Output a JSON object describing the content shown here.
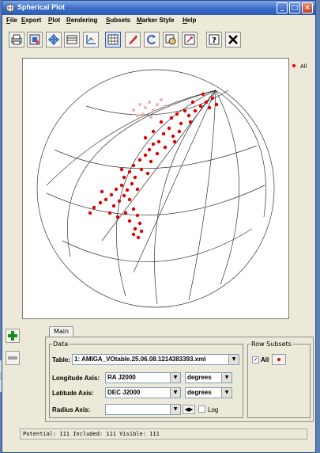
{
  "window": {
    "title": "Spherical Plot"
  },
  "menu": [
    {
      "label": "File",
      "u": "F",
      "rest": "ile"
    },
    {
      "label": "Export",
      "u": "E",
      "rest": "xport"
    },
    {
      "label": "Plot",
      "u": "P",
      "rest": "lot"
    },
    {
      "label": "Rendering",
      "u": "R",
      "rest": "endering"
    },
    {
      "label": "Subsets",
      "u": "S",
      "rest": "ubsets"
    },
    {
      "label": "Marker Style",
      "u": "M",
      "rest": "arker Style"
    },
    {
      "label": "Help",
      "u": "H",
      "rest": "elp"
    }
  ],
  "toolbar": {
    "icons": [
      "print-icon",
      "export-image-icon",
      "move-icon",
      "axes-icon",
      "fit-icon",
      "grid-icon",
      "marker-icon",
      "rotate-icon",
      "subset-icon",
      "zoom-icon",
      "help-icon",
      "close-icon"
    ]
  },
  "legend": {
    "label": "All",
    "color": "#e00000"
  },
  "tabs": {
    "main_label": "Main"
  },
  "data_group": {
    "title": "Data",
    "table_label": "Table:",
    "table_value": "1: AMIGA_VOtable.25.06.08.1214383393.xml",
    "longitude_label": "Longitude Axis:",
    "longitude_value": "RA J2000",
    "longitude_unit": "degrees",
    "latitude_label": "Latitude Axis:",
    "latitude_value": "DEC J2000",
    "latitude_unit": "degrees",
    "radius_label": "Radius Axis:",
    "radius_value": "",
    "log_label": "Log"
  },
  "row_subsets": {
    "title": "Row Subsets",
    "all_label": "All",
    "all_checked": true
  },
  "status": {
    "text": "Potential: 111 Included: 111 Visible: 111"
  },
  "colors": {
    "marker": "#e00000",
    "title_bar": "#2d5bb5"
  }
}
